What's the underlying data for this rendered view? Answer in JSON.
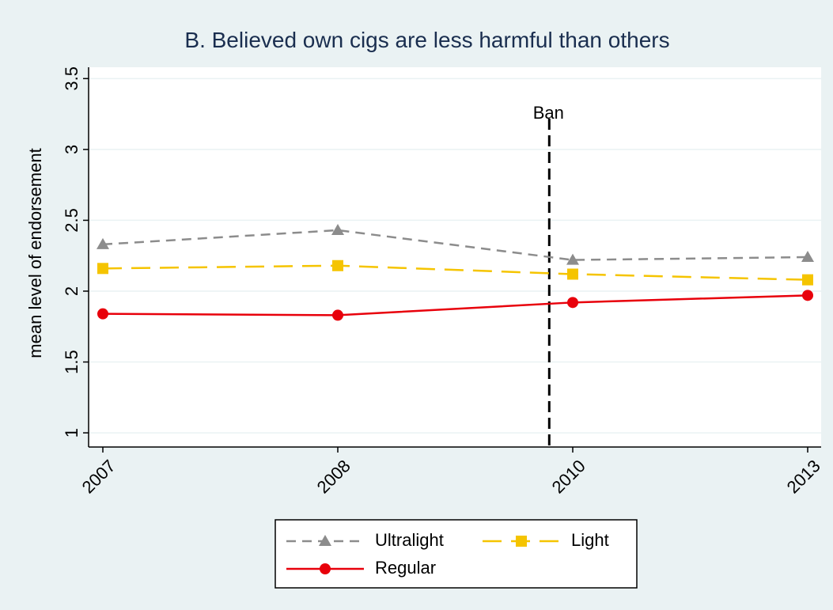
{
  "chart_data": {
    "type": "line",
    "title": "B. Believed own cigs are less harmful than others",
    "y_label": "mean level of endorsement",
    "categories": [
      "2007",
      "2008",
      "2010",
      "2013"
    ],
    "series": [
      {
        "name": "Ultralight",
        "color": "#8c8c8c",
        "marker": "triangle",
        "dash": "dash",
        "values": [
          2.33,
          2.43,
          2.22,
          2.24
        ]
      },
      {
        "name": "Light",
        "color": "#f5c400",
        "marker": "square",
        "dash": "longdash",
        "values": [
          2.16,
          2.18,
          2.12,
          2.08
        ]
      },
      {
        "name": "Regular",
        "color": "#e8000b",
        "marker": "circle",
        "dash": "solid",
        "values": [
          1.84,
          1.83,
          1.92,
          1.97
        ]
      }
    ],
    "annotation": "Ban",
    "ylim": [
      0.9,
      3.58
    ],
    "yticks": [
      1,
      1.5,
      2,
      2.5,
      3,
      3.5
    ],
    "grid": true
  }
}
